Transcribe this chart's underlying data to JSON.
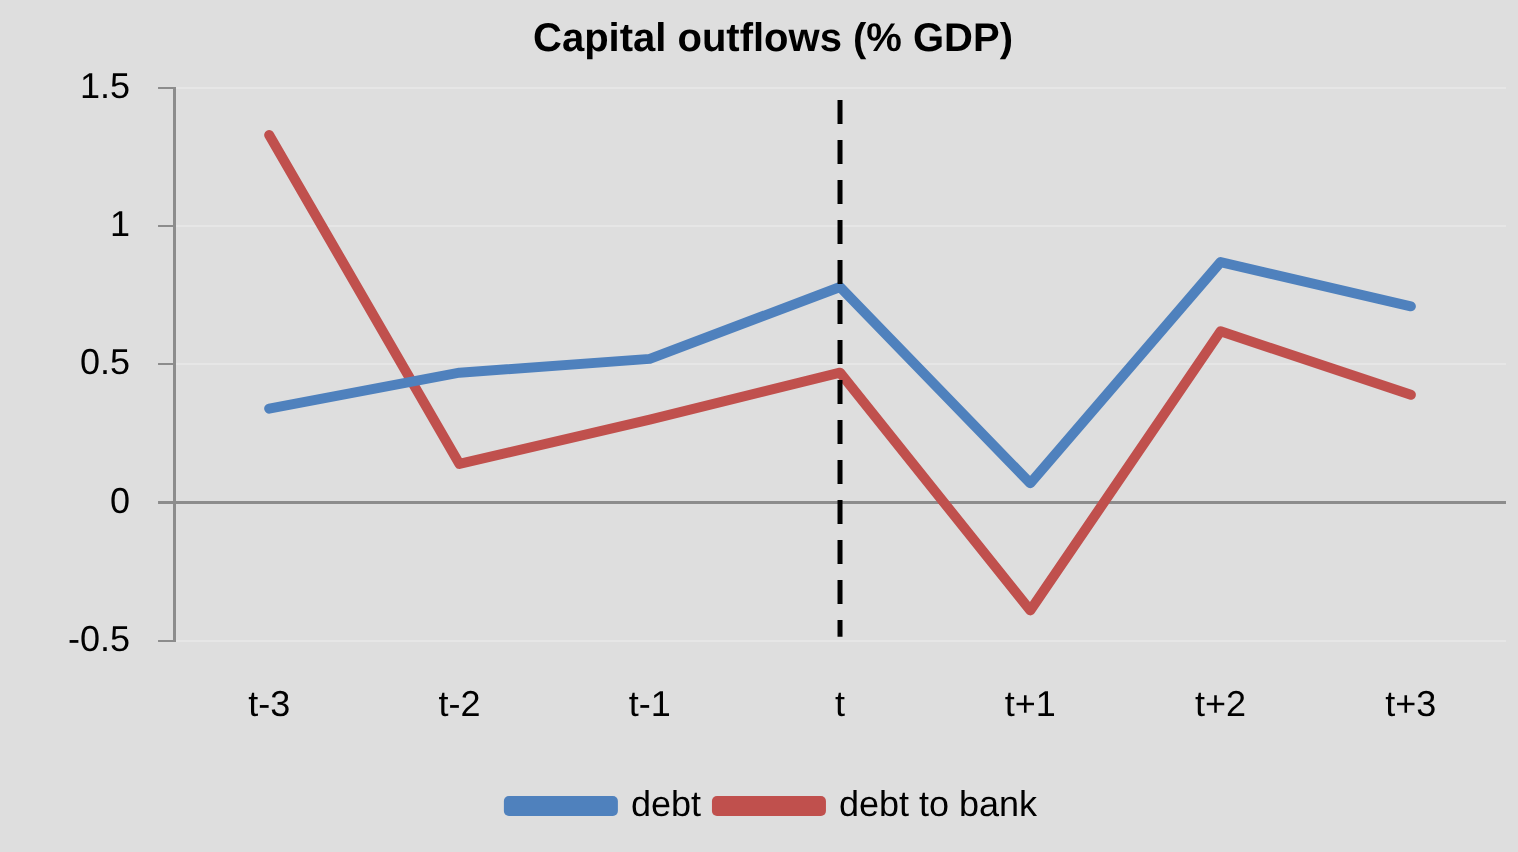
{
  "chart_data": {
    "type": "line",
    "title": "Capital outflows (% GDP)",
    "categories": [
      "t-3",
      "t-2",
      "t-1",
      "t",
      "t+1",
      "t+2",
      "t+3"
    ],
    "series": [
      {
        "name": "debt",
        "color": "#4f81bd",
        "values": [
          0.34,
          0.47,
          0.52,
          0.78,
          0.07,
          0.87,
          0.71
        ]
      },
      {
        "name": "debt to bank",
        "color": "#c0504d",
        "values": [
          1.33,
          0.14,
          0.3,
          0.47,
          -0.39,
          0.62,
          0.39
        ]
      }
    ],
    "ylim": [
      -0.5,
      1.5
    ],
    "yticks": [
      -0.5,
      0,
      0.5,
      1,
      1.5
    ],
    "grid": "y",
    "legend": "bottom",
    "line_style": "solid",
    "ref_lines": [
      {
        "axis": "x",
        "value": "t",
        "color": "#000000",
        "line_style": "dashed"
      }
    ]
  }
}
